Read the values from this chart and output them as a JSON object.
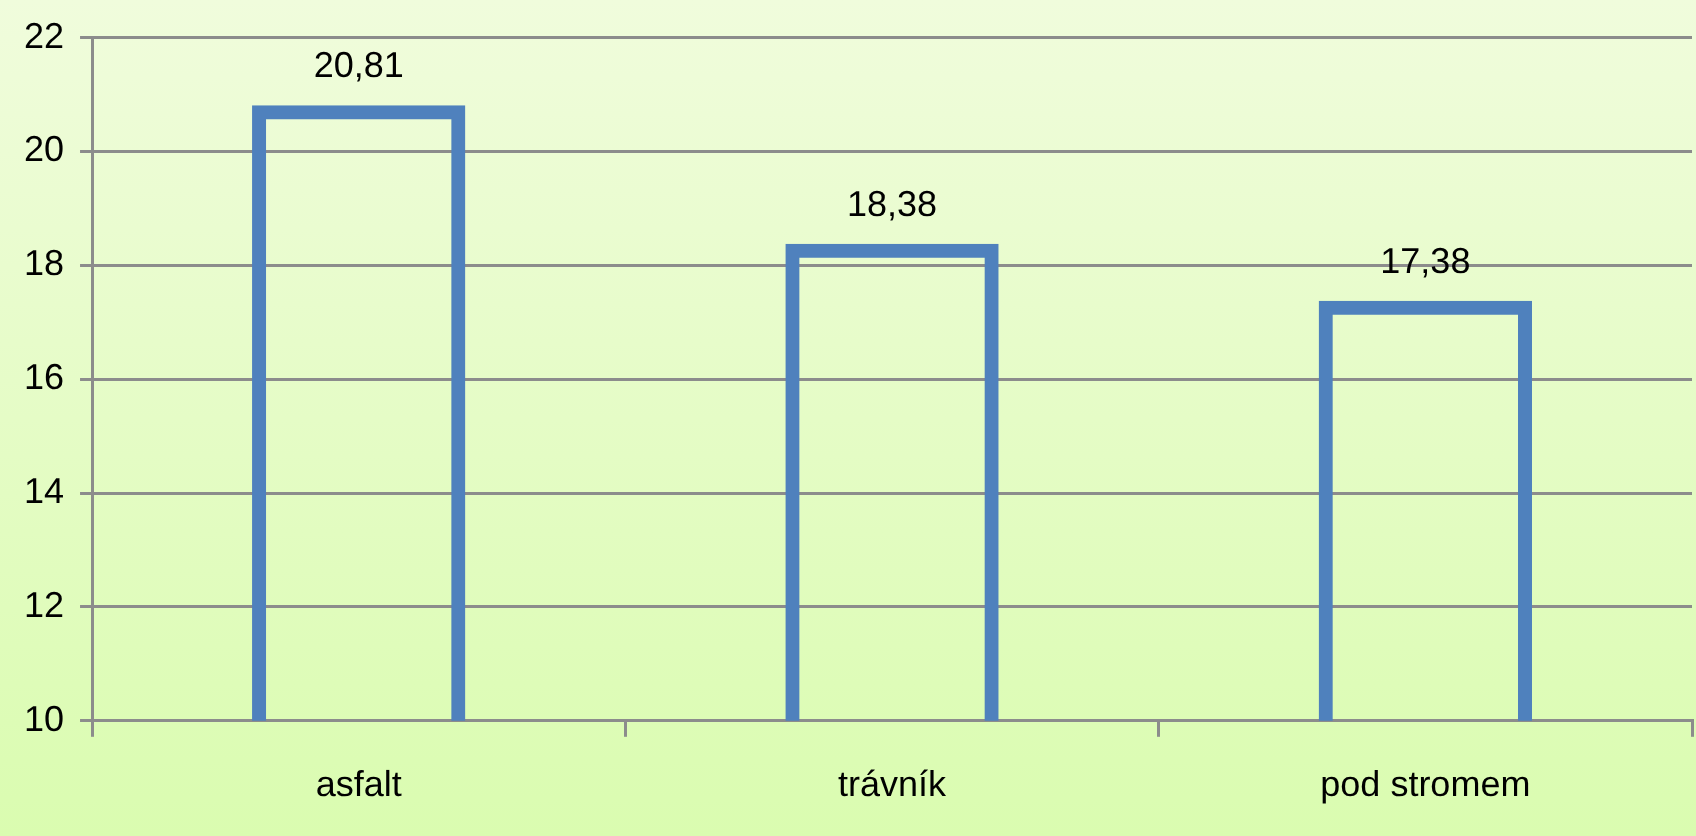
{
  "chart_data": {
    "type": "bar",
    "categories": [
      "asfalt",
      "trávník",
      "pod stromem"
    ],
    "values": [
      20.81,
      18.38,
      17.38
    ],
    "value_labels": [
      "20,81",
      "18,38",
      "17,38"
    ],
    "color": "#4f81bd",
    "ylim": [
      10,
      22
    ],
    "yticks": [
      10,
      12,
      14,
      16,
      18,
      20,
      22
    ],
    "grid": "y",
    "legend": false
  }
}
